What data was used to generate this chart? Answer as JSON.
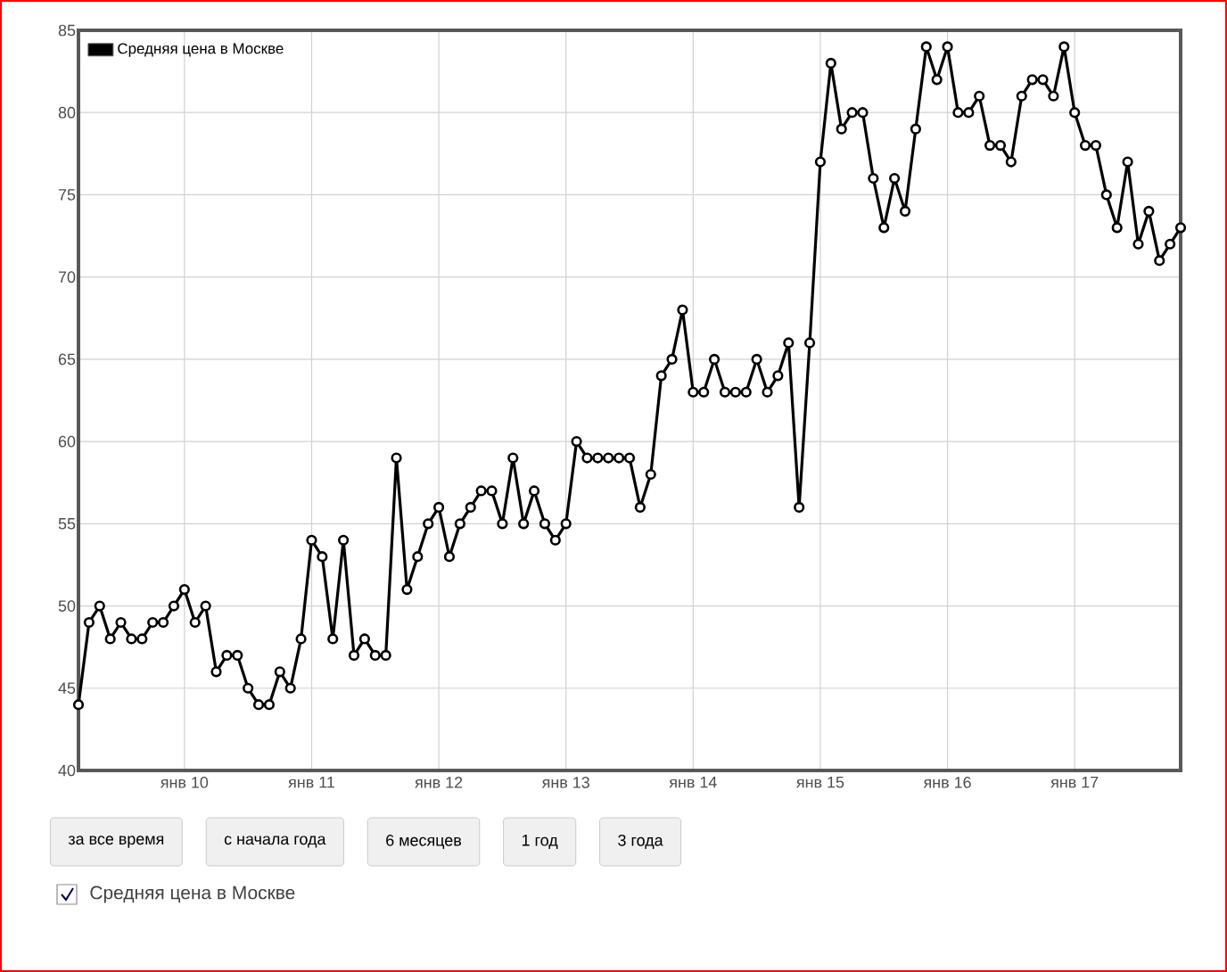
{
  "chart_data": {
    "type": "line",
    "x": [
      "2009-03",
      "2009-04",
      "2009-05",
      "2009-06",
      "2009-07",
      "2009-08",
      "2009-09",
      "2009-10",
      "2009-11",
      "2009-12",
      "2010-01",
      "2010-02",
      "2010-03",
      "2010-04",
      "2010-05",
      "2010-06",
      "2010-07",
      "2010-08",
      "2010-09",
      "2010-10",
      "2010-11",
      "2010-12",
      "2011-01",
      "2011-02",
      "2011-03",
      "2011-04",
      "2011-05",
      "2011-06",
      "2011-07",
      "2011-08",
      "2011-09",
      "2011-10",
      "2011-11",
      "2011-12",
      "2012-01",
      "2012-02",
      "2012-03",
      "2012-04",
      "2012-05",
      "2012-06",
      "2012-07",
      "2012-08",
      "2012-09",
      "2012-10",
      "2012-11",
      "2012-12",
      "2013-01",
      "2013-02",
      "2013-03",
      "2013-04",
      "2013-05",
      "2013-06",
      "2013-07",
      "2013-08",
      "2013-09",
      "2013-10",
      "2013-11",
      "2013-12",
      "2014-01",
      "2014-02",
      "2014-03",
      "2014-04",
      "2014-05",
      "2014-06",
      "2014-07",
      "2014-08",
      "2014-09",
      "2014-10",
      "2014-11",
      "2014-12",
      "2015-01",
      "2015-02",
      "2015-03",
      "2015-04",
      "2015-05",
      "2015-06",
      "2015-07",
      "2015-08",
      "2015-09",
      "2015-10",
      "2015-11",
      "2015-12",
      "2016-01",
      "2016-02",
      "2016-03",
      "2016-04",
      "2016-05",
      "2016-06",
      "2016-07",
      "2016-08",
      "2016-09",
      "2016-10",
      "2016-11",
      "2016-12",
      "2017-01",
      "2017-02",
      "2017-03",
      "2017-04",
      "2017-05",
      "2017-06",
      "2017-07",
      "2017-08",
      "2017-09",
      "2017-10",
      "2017-11"
    ],
    "series": [
      {
        "name": "Средняя цена в Москве",
        "color": "#000000",
        "values": [
          44,
          49,
          50,
          48,
          49,
          48,
          48,
          49,
          49,
          50,
          51,
          49,
          50,
          46,
          47,
          47,
          45,
          44,
          44,
          46,
          45,
          48,
          54,
          53,
          48,
          54,
          47,
          48,
          47,
          47,
          59,
          51,
          53,
          55,
          56,
          53,
          55,
          56,
          57,
          57,
          55,
          59,
          55,
          57,
          55,
          54,
          55,
          60,
          59,
          59,
          59,
          59,
          59,
          56,
          58,
          64,
          65,
          68,
          63,
          63,
          65,
          63,
          63,
          63,
          65,
          63,
          64,
          66,
          56,
          66,
          77,
          83,
          79,
          80,
          80,
          76,
          73,
          76,
          74,
          79,
          84,
          82,
          84,
          80,
          80,
          81,
          78,
          78,
          77,
          81,
          82,
          82,
          81,
          84,
          80,
          78,
          78,
          75,
          73,
          77,
          72,
          74,
          71,
          72,
          73
        ]
      }
    ],
    "xlim": [
      "2009-03",
      "2017-11"
    ],
    "xticks": [
      {
        "value": "2010-01",
        "label": "янв 10"
      },
      {
        "value": "2011-01",
        "label": "янв 11"
      },
      {
        "value": "2012-01",
        "label": "янв 12"
      },
      {
        "value": "2013-01",
        "label": "янв 13"
      },
      {
        "value": "2014-01",
        "label": "янв 14"
      },
      {
        "value": "2015-01",
        "label": "янв 15"
      },
      {
        "value": "2016-01",
        "label": "янв 16"
      },
      {
        "value": "2017-01",
        "label": "янв 17"
      }
    ],
    "ylim": [
      40,
      85
    ],
    "yticks": [
      40,
      45,
      50,
      55,
      60,
      65,
      70,
      75,
      80,
      85
    ],
    "grid": true,
    "legend": "top left",
    "marker": "circle",
    "line_style": "solid",
    "annotations": [
      "за все время",
      "с начала года",
      "6 месяцев",
      "1 год",
      "3 года",
      "Средняя цена в Москве"
    ]
  }
}
